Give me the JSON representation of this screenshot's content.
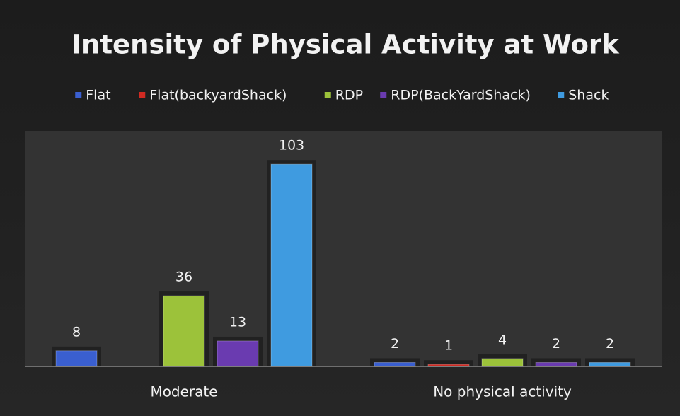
{
  "chart_data": {
    "type": "bar",
    "title": "Intensity of Physical Activity at Work",
    "categories": [
      "Moderate",
      "No physical activity"
    ],
    "series": [
      {
        "name": "Flat",
        "color": "#3a5fd0",
        "values": [
          8,
          2
        ]
      },
      {
        "name": "Flat(backyardShack)",
        "color": "#d02a22",
        "values": [
          null,
          1
        ]
      },
      {
        "name": "RDP",
        "color": "#9cc23a",
        "values": [
          36,
          4
        ]
      },
      {
        "name": "RDP(BackYardShack)",
        "color": "#6a3bb0",
        "values": [
          13,
          2
        ]
      },
      {
        "name": "Shack",
        "color": "#3f9be0",
        "values": [
          103,
          2
        ]
      }
    ],
    "ylim": [
      0,
      120
    ],
    "legend": "top"
  }
}
